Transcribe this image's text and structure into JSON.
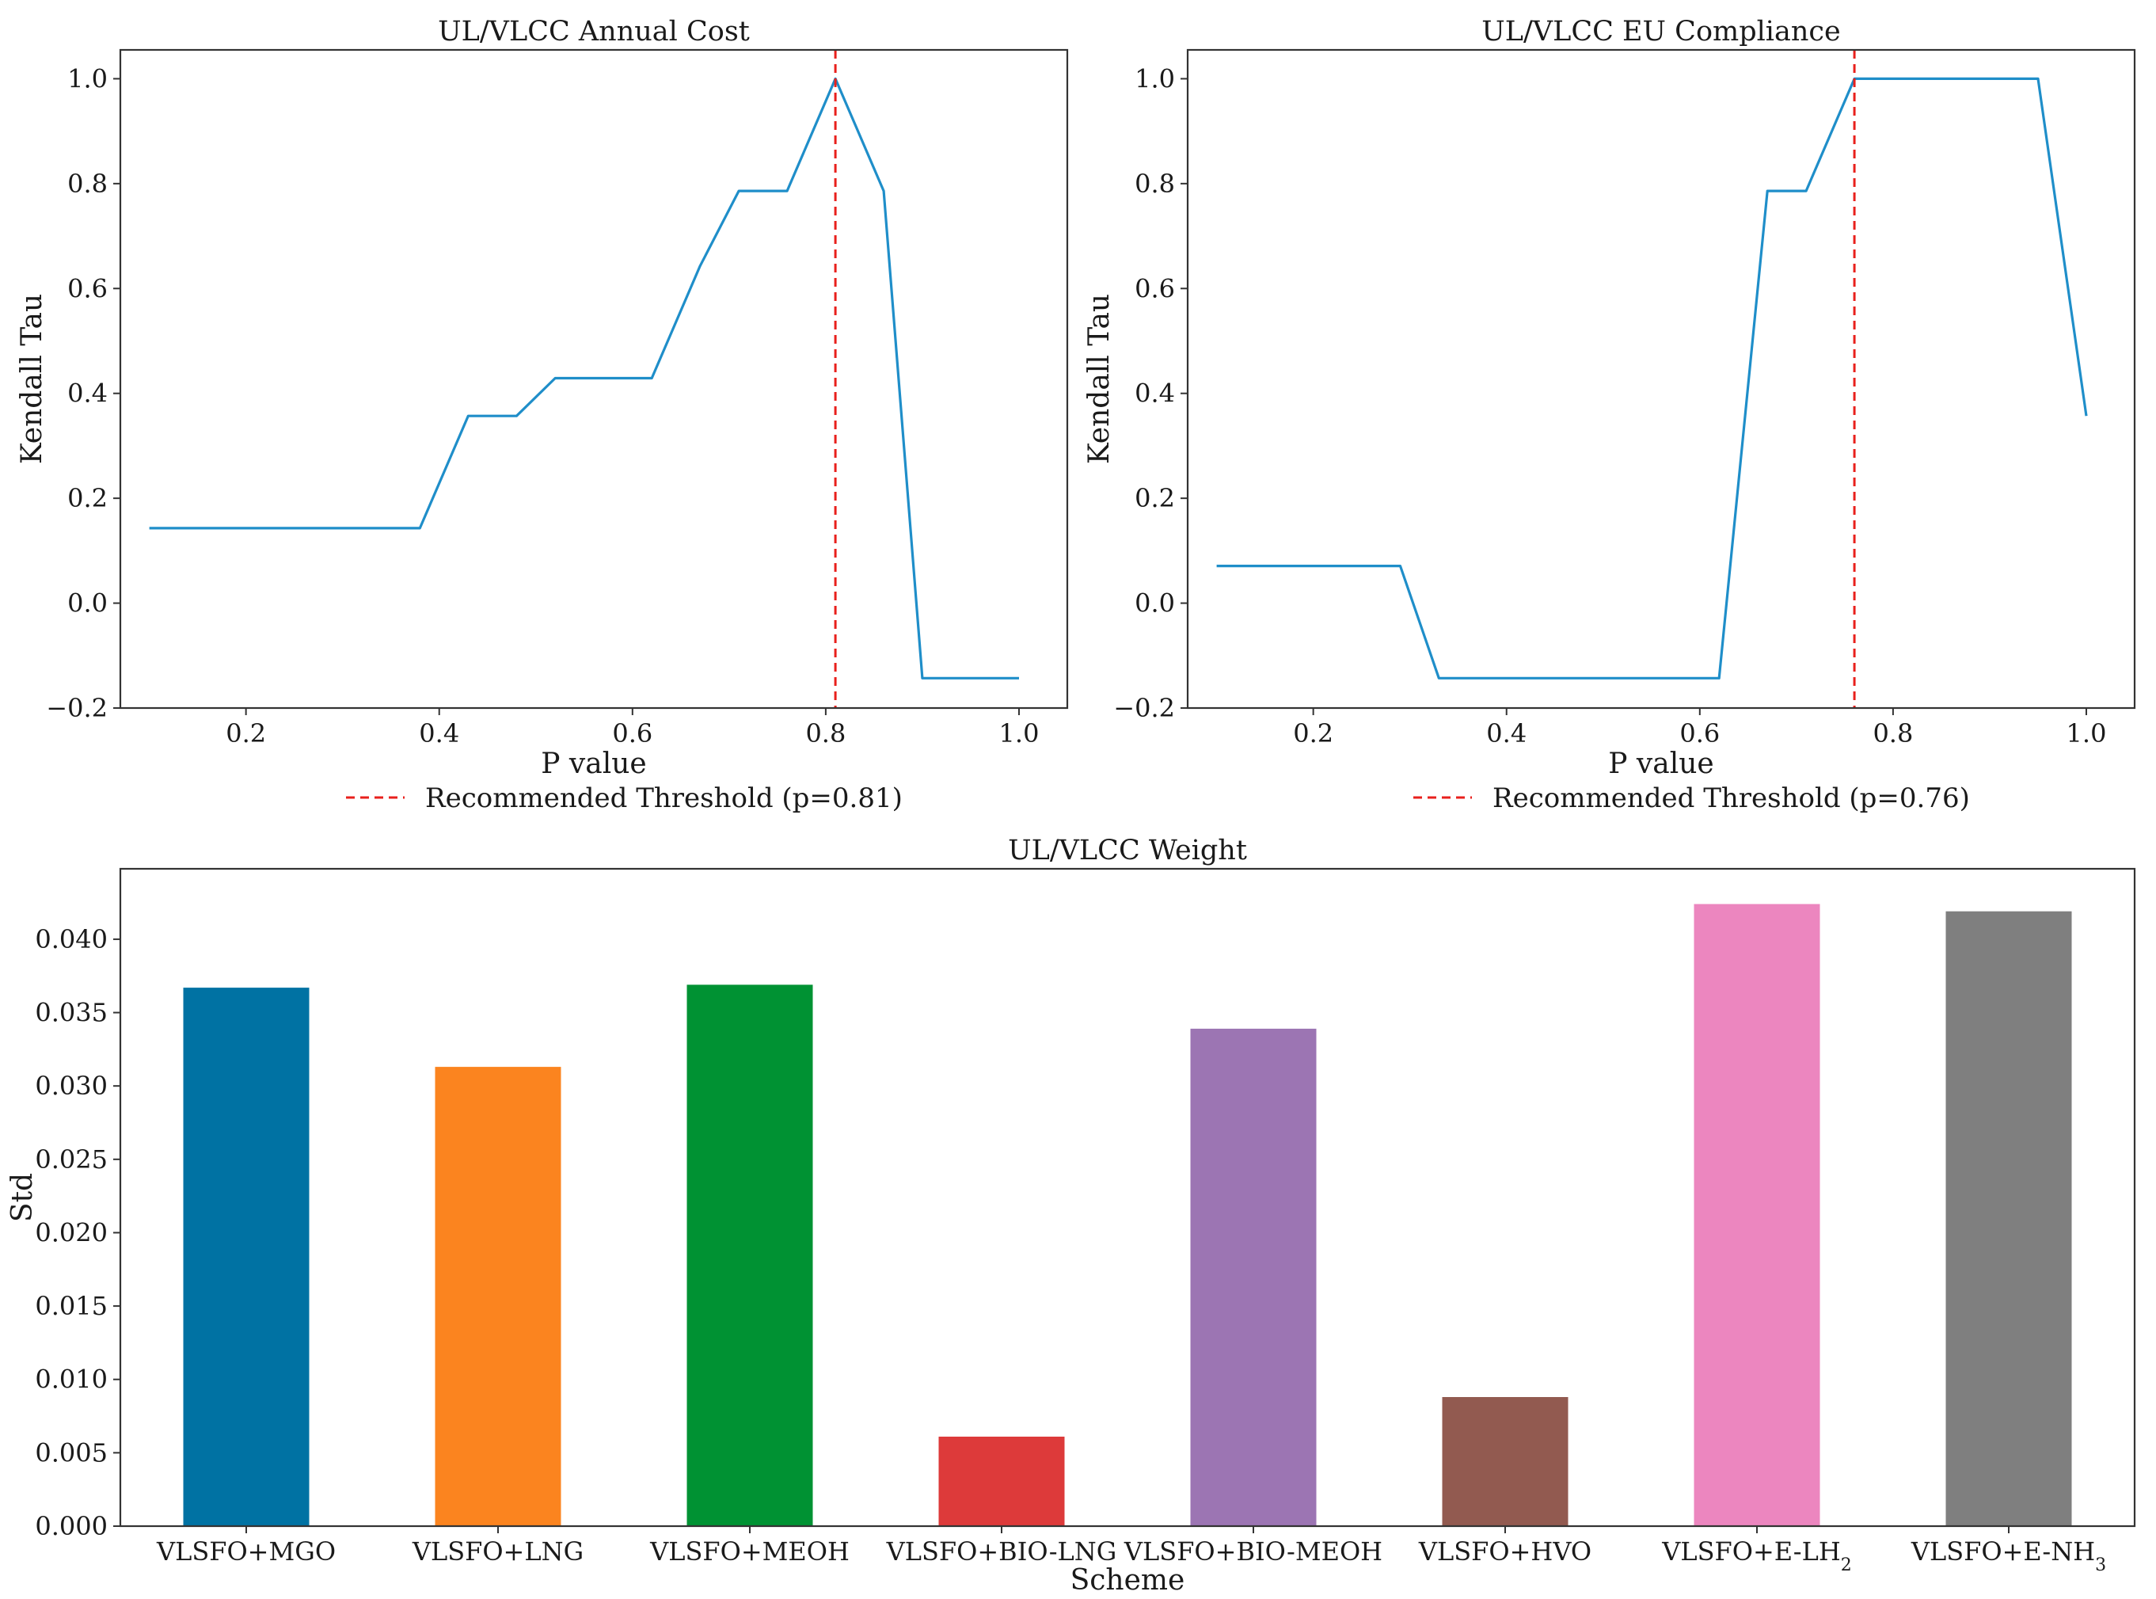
{
  "chart_data": [
    {
      "type": "line",
      "title": "UL/VLCC Annual Cost",
      "xlabel": "P value",
      "ylabel": "Kendall Tau",
      "xlim": [
        0.07,
        1.05
      ],
      "ylim": [
        -0.2,
        1.055
      ],
      "xticks": [
        0.2,
        0.4,
        0.6,
        0.8,
        1.0
      ],
      "yticks": [
        -0.2,
        0.0,
        0.2,
        0.4,
        0.6,
        0.8,
        1.0
      ],
      "xtick_labels": [
        "0.2",
        "0.4",
        "0.6",
        "0.8",
        "1.0"
      ],
      "ytick_labels": [
        "−0.2",
        "0.0",
        "0.2",
        "0.4",
        "0.6",
        "0.8",
        "1.0"
      ],
      "grid": false,
      "line_color": "#1f8ec9",
      "series": [
        {
          "name": "Kendall Tau",
          "x": [
            0.1,
            0.38,
            0.43,
            0.48,
            0.52,
            0.57,
            0.62,
            0.67,
            0.71,
            0.76,
            0.81,
            0.86,
            0.9,
            0.95,
            1.0
          ],
          "y": [
            0.143,
            0.143,
            0.357,
            0.357,
            0.429,
            0.429,
            0.429,
            0.643,
            0.786,
            0.786,
            1.0,
            0.786,
            -0.143,
            -0.143,
            -0.143
          ]
        }
      ],
      "threshold": {
        "x": 0.81,
        "color": "#e8201c",
        "label": "Recommended Threshold (p=0.81)"
      },
      "legend_position": "below"
    },
    {
      "type": "line",
      "title": "UL/VLCC EU Compliance",
      "xlabel": "P value",
      "ylabel": "Kendall Tau",
      "xlim": [
        0.07,
        1.05
      ],
      "ylim": [
        -0.2,
        1.055
      ],
      "xticks": [
        0.2,
        0.4,
        0.6,
        0.8,
        1.0
      ],
      "yticks": [
        -0.2,
        0.0,
        0.2,
        0.4,
        0.6,
        0.8,
        1.0
      ],
      "xtick_labels": [
        "0.2",
        "0.4",
        "0.6",
        "0.8",
        "1.0"
      ],
      "ytick_labels": [
        "−0.2",
        "0.0",
        "0.2",
        "0.4",
        "0.6",
        "0.8",
        "1.0"
      ],
      "grid": false,
      "line_color": "#1f8ec9",
      "series": [
        {
          "name": "Kendall Tau",
          "x": [
            0.1,
            0.29,
            0.33,
            0.62,
            0.67,
            0.71,
            0.76,
            0.95,
            1.0
          ],
          "y": [
            0.071,
            0.071,
            -0.143,
            -0.143,
            0.786,
            0.786,
            1.0,
            1.0,
            0.357
          ]
        }
      ],
      "threshold": {
        "x": 0.76,
        "color": "#e8201c",
        "label": "Recommended Threshold (p=0.76)"
      },
      "legend_position": "below"
    },
    {
      "type": "bar",
      "title": "UL/VLCC Weight",
      "xlabel": "Scheme",
      "ylabel": "Std",
      "ylim": [
        0.0,
        0.0448
      ],
      "yticks": [
        0.0,
        0.005,
        0.01,
        0.015,
        0.02,
        0.025,
        0.03,
        0.035,
        0.04
      ],
      "ytick_labels": [
        "0.000",
        "0.005",
        "0.010",
        "0.015",
        "0.020",
        "0.025",
        "0.030",
        "0.035",
        "0.040"
      ],
      "grid": false,
      "categories": [
        {
          "main": "VLSFO+MGO",
          "sub": ""
        },
        {
          "main": "VLSFO+LNG",
          "sub": ""
        },
        {
          "main": "VLSFO+MEOH",
          "sub": ""
        },
        {
          "main": "VLSFO+BIO-LNG",
          "sub": ""
        },
        {
          "main": "VLSFO+BIO-MEOH",
          "sub": ""
        },
        {
          "main": "VLSFO+HVO",
          "sub": ""
        },
        {
          "main": "VLSFO+E-LH",
          "sub": "2"
        },
        {
          "main": "VLSFO+E-NH",
          "sub": "3"
        }
      ],
      "values": [
        0.0367,
        0.0313,
        0.0369,
        0.0061,
        0.0339,
        0.0088,
        0.0424,
        0.0419
      ],
      "colors": [
        "#0072a3",
        "#fb841f",
        "#009233",
        "#dd3a3a",
        "#9c75b3",
        "#925a50",
        "#ec86bf",
        "#7f7f7f"
      ]
    }
  ]
}
